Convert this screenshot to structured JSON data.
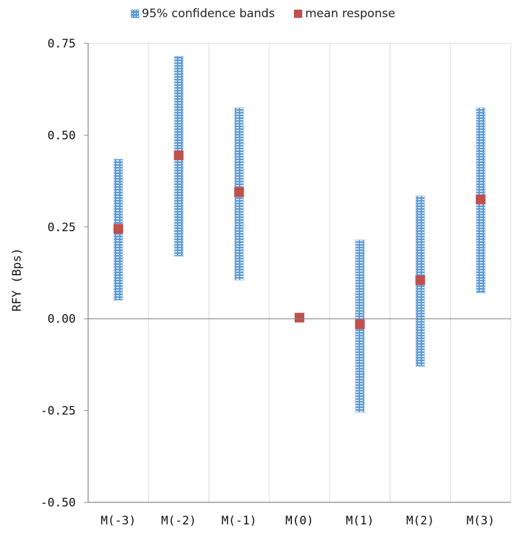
{
  "chart_data": {
    "type": "scatter",
    "title": "",
    "xlabel": "",
    "ylabel": "RFY (Bps)",
    "ylim": [
      -0.5,
      0.75
    ],
    "yticks": [
      "0.75",
      "0.50",
      "0.25",
      "0.00",
      "-0.25",
      "-0.50"
    ],
    "ytick_values": [
      0.75,
      0.5,
      0.25,
      0.0,
      -0.25,
      -0.5
    ],
    "categories": [
      "M(-3)",
      "M(-2)",
      "M(-1)",
      "M(0)",
      "M(1)",
      "M(2)",
      "M(3)"
    ],
    "series": [
      {
        "name": "95% confidence bands",
        "kind": "range",
        "color": "#5b9bd5",
        "low": [
          0.05,
          0.17,
          0.105,
          null,
          -0.255,
          -0.13,
          0.07
        ],
        "high": [
          0.435,
          0.715,
          0.575,
          null,
          0.215,
          0.335,
          0.575
        ]
      },
      {
        "name": "mean response",
        "kind": "marker",
        "color": "#c0504d",
        "values": [
          0.245,
          0.445,
          0.345,
          0.003,
          -0.015,
          0.105,
          0.325
        ]
      }
    ],
    "grid": true,
    "legend_position": "top"
  }
}
